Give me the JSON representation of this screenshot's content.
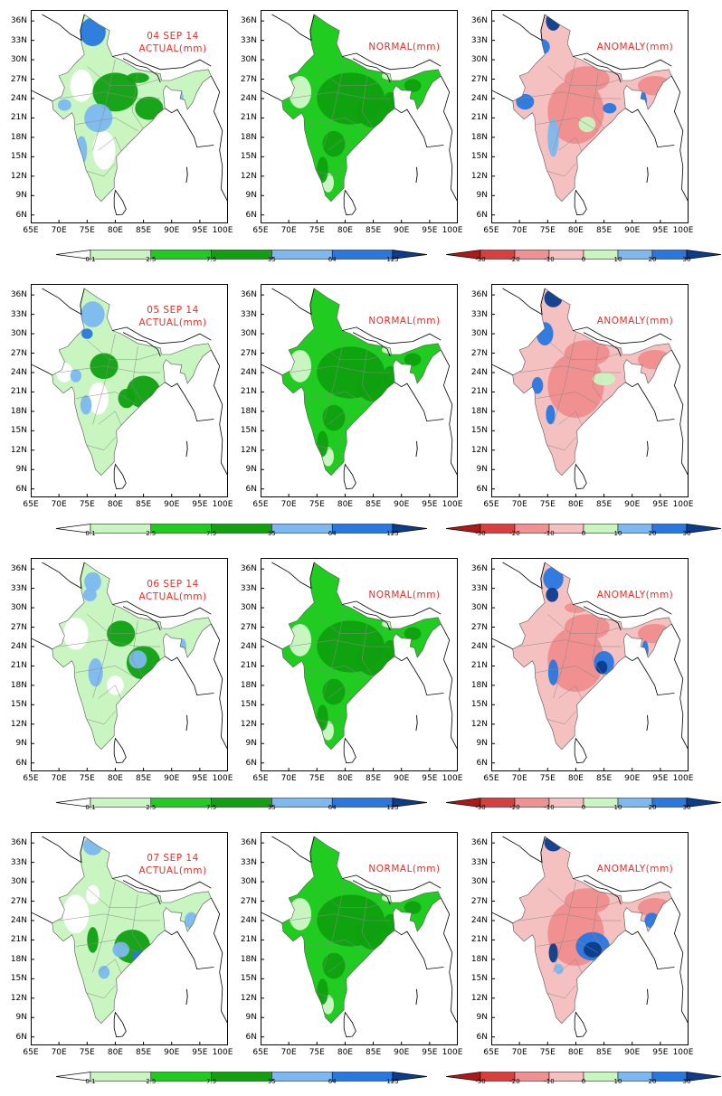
{
  "lat_ticks": [
    "36N",
    "33N",
    "30N",
    "27N",
    "24N",
    "21N",
    "18N",
    "15N",
    "12N",
    "9N",
    "6N"
  ],
  "lon_ticks": [
    "65E",
    "70E",
    "75E",
    "80E",
    "85E",
    "90E",
    "95E",
    "100E"
  ],
  "rows": [
    {
      "date_label": "04 SEP 14",
      "actual_label": "ACTUAL(mm)",
      "normal_label": "NORMAL(mm)",
      "anomaly_label": "ANOMALY(mm)"
    },
    {
      "date_label": "05 SEP 14",
      "actual_label": "ACTUAL(mm)",
      "normal_label": "NORMAL(mm)",
      "anomaly_label": "ANOMALY(mm)"
    },
    {
      "date_label": "06 SEP 14",
      "actual_label": "ACTUAL(mm)",
      "normal_label": "NORMAL(mm)",
      "anomaly_label": "ANOMALY(mm)"
    },
    {
      "date_label": "07 SEP 14",
      "actual_label": "ACTUAL(mm)",
      "normal_label": "NORMAL(mm)",
      "anomaly_label": "ANOMALY(mm)"
    }
  ],
  "rain_scale": {
    "ticks": [
      "0.1",
      "2.5",
      "7.5",
      "35",
      "64",
      "125"
    ],
    "colors": [
      "#ffffff",
      "#c8f5c0",
      "#20cc20",
      "#10a010",
      "#7db8f0",
      "#2878e0",
      "#0c3c8c"
    ]
  },
  "anomaly_scale": {
    "ticks": [
      "-30",
      "-20",
      "-10",
      "0",
      "10",
      "20",
      "30"
    ],
    "colors": [
      "#b01818",
      "#d84040",
      "#f09090",
      "#f5c0c0",
      "#c8f5c0",
      "#7db8f0",
      "#2878e0",
      "#0c3c8c"
    ]
  }
}
